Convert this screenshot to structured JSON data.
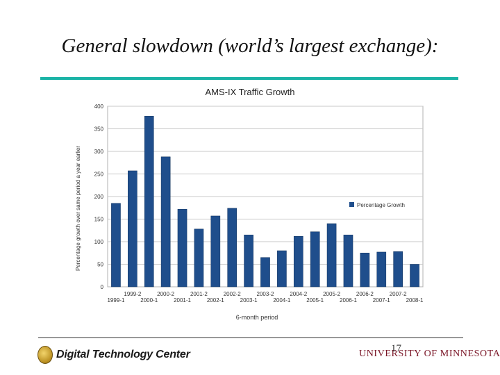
{
  "slide": {
    "title": "General slowdown (world’s largest exchange):",
    "page_number": "17",
    "accent_color": "#1ab3a6"
  },
  "footer": {
    "left_logo_text": "Digital Technology Center",
    "right_logo_text": "UNIVERSITY OF MINNESOTA"
  },
  "chart_data": {
    "type": "bar",
    "title": "AMS-IX Traffic Growth",
    "xlabel": "6-month period",
    "ylabel": "Percentage growth over same period a year earlier",
    "ylim": [
      0,
      400
    ],
    "yticks": [
      0,
      50,
      100,
      150,
      200,
      250,
      300,
      350,
      400
    ],
    "grid": true,
    "legend_position": "right",
    "bar_color": "#1f4e8c",
    "categories": [
      "1999-1",
      "1999-2",
      "2000-1",
      "2000-2",
      "2001-1",
      "2001-2",
      "2002-1",
      "2002-2",
      "2003-1",
      "2003-2",
      "2004-1",
      "2004-2",
      "2005-1",
      "2005-2",
      "2006-1",
      "2006-2",
      "2007-1",
      "2007-2",
      "2008-1"
    ],
    "series": [
      {
        "name": "Percentage Growth",
        "values": [
          185,
          257,
          378,
          288,
          172,
          128,
          157,
          174,
          115,
          65,
          80,
          112,
          122,
          140,
          115,
          75,
          77,
          78,
          50
        ]
      }
    ]
  }
}
